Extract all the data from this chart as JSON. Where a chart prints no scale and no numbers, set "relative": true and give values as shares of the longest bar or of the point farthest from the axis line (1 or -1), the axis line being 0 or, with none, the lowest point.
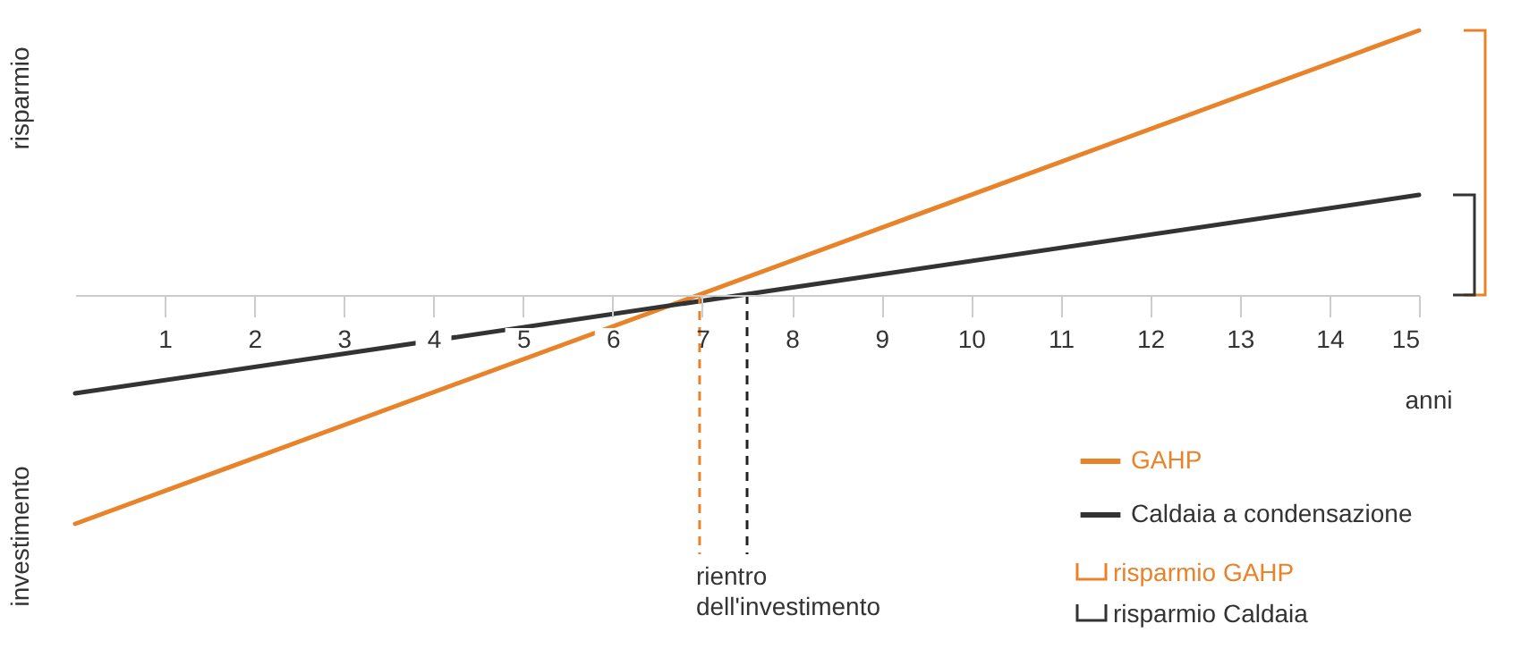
{
  "chart_data": {
    "type": "line",
    "relative": true,
    "xlabel": "anni",
    "ylabel": "risparmio",
    "annotations": [
      "investimento",
      "risparmio GAHP",
      "risparmio Caldaia"
    ],
    "x": [
      0,
      15
    ],
    "xlim": [
      0,
      15
    ],
    "xticks": [
      1,
      2,
      3,
      4,
      5,
      6,
      7,
      8,
      9,
      10,
      11,
      12,
      13,
      14,
      15
    ],
    "series": [
      {
        "name": "GAHP",
        "color": "#e8832a",
        "values": [
          -0.865,
          1
        ]
      },
      {
        "name": "Caldaia a condensazione",
        "color": "#333333",
        "values": [
          -0.372,
          0.378
        ]
      }
    ],
    "ref_lines": [
      {
        "axis": "x",
        "value": 6.97,
        "color": "#e8832a",
        "line_style": "dashed",
        "label": "rientro dell'investimento"
      },
      {
        "axis": "x",
        "value": 7.5,
        "color": "#222222",
        "line_style": "dashed"
      }
    ],
    "grid": false,
    "legend": "bottom right",
    "marker": "none",
    "line_style": "solid"
  }
}
